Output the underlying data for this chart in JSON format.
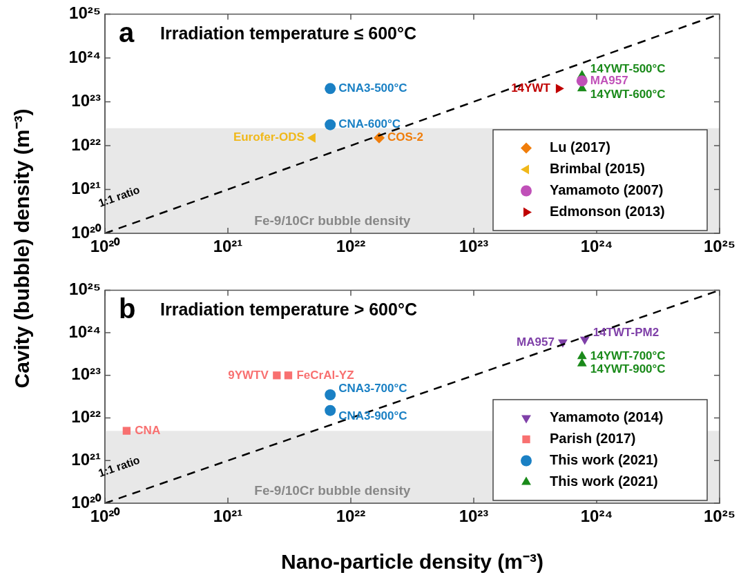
{
  "chart_data": [
    {
      "type": "scatter",
      "title": "Irradiation temperature ≤ 600°C",
      "ylabel": "Cavity (bubble) density (m⁻³)",
      "log": "xy",
      "legend": "bottom right",
      "xlim": [
        1e+20,
        1e+25
      ],
      "ylim": [
        1e+20,
        1e+25
      ],
      "xticks": [
        {
          "value": 1e+20,
          "label": "10²⁰"
        },
        {
          "value": 1e+21,
          "label": "10²¹"
        },
        {
          "value": 1e+22,
          "label": "10²²"
        },
        {
          "value": 1e+23,
          "label": "10²³"
        },
        {
          "value": 1e+24,
          "label": "10²⁴"
        },
        {
          "value": 1e+25,
          "label": "10²⁵"
        }
      ],
      "yticks": [
        {
          "value": 1e+20,
          "label": "10²⁰"
        },
        {
          "value": 1e+21,
          "label": "10²¹"
        },
        {
          "value": 1e+22,
          "label": "10²²"
        },
        {
          "value": 1e+23,
          "label": "10²³"
        },
        {
          "value": 1e+24,
          "label": "10²⁴"
        },
        {
          "value": 1e+25,
          "label": "10²⁵"
        }
      ],
      "bands": [
        {
          "axis": "y",
          "from": 1e+20,
          "to": 2.5e+22,
          "label": "Fe-9/10Cr bubble density",
          "color": "#e8e8e8"
        }
      ],
      "annotations": [
        "a",
        {
          "text": "CNA3-500°C",
          "x": 6.8e+21,
          "y": 2e+23
        },
        {
          "text": "CNA-600°C",
          "x": 6.8e+21,
          "y": 3e+22
        },
        {
          "text": "Eurofer-ODS",
          "x": 4.9e+21,
          "y": 1.5e+22
        },
        {
          "text": "COS-2",
          "x": 1.7e+22,
          "y": 1.5e+22
        },
        {
          "text": "14YWT",
          "x": 4.9e+23,
          "y": 2e+23
        },
        {
          "text": "14YWT-500°C",
          "x": 7.6e+23,
          "y": 4e+23
        },
        {
          "text": "MA957",
          "x": 7.6e+23,
          "y": 3e+23
        },
        {
          "text": "14YWT-600°C",
          "x": 7.6e+23,
          "y": 2e+23
        }
      ],
      "series": [
        {
          "type": "line",
          "name": "1:1 ratio",
          "color": "#000000",
          "line_style": "dashed",
          "marker": "none",
          "x": [
            1e+20,
            1e+25
          ],
          "values": [
            1e+20,
            1e+25
          ]
        },
        {
          "name": "Lu (2017)",
          "color": "#f07d0a",
          "marker": "diamond",
          "x": [
            1.7e+22
          ],
          "values": [
            1.5e+22
          ]
        },
        {
          "name": "Brimbal (2015)",
          "color": "#f0b81a",
          "marker": "triangle-left",
          "x": [
            4.9e+21
          ],
          "values": [
            1.5e+22
          ]
        },
        {
          "name": "Yamamoto (2007)",
          "color": "#c050b8",
          "marker": "circle",
          "x": [
            7.6e+23
          ],
          "values": [
            3e+23
          ]
        },
        {
          "name": "Edmonson (2013)",
          "color": "#c00000",
          "marker": "triangle-right",
          "x": [
            4.9e+23
          ],
          "values": [
            2e+23
          ]
        },
        {
          "color": "#1a80c4",
          "marker": "circle",
          "x": [
            6.8e+21,
            6.8e+21
          ],
          "values": [
            2e+23,
            3e+22
          ]
        },
        {
          "color": "#1a8a1a",
          "marker": "triangle",
          "x": [
            7.6e+23,
            7.6e+23
          ],
          "values": [
            4e+23,
            2e+23
          ]
        }
      ]
    },
    {
      "type": "scatter",
      "title": "Irradiation temperature > 600°C",
      "xlabel": "Nano-particle density (m⁻³)",
      "log": "xy",
      "legend": "bottom right",
      "xlim": [
        1e+20,
        1e+25
      ],
      "ylim": [
        1e+20,
        1e+25
      ],
      "xticks": [
        {
          "value": 1e+20,
          "label": "10²⁰"
        },
        {
          "value": 1e+21,
          "label": "10²¹"
        },
        {
          "value": 1e+22,
          "label": "10²²"
        },
        {
          "value": 1e+23,
          "label": "10²³"
        },
        {
          "value": 1e+24,
          "label": "10²⁴"
        },
        {
          "value": 1e+25,
          "label": "10²⁵"
        }
      ],
      "yticks": [
        {
          "value": 1e+20,
          "label": "10²⁰"
        },
        {
          "value": 1e+21,
          "label": "10²¹"
        },
        {
          "value": 1e+22,
          "label": "10²²"
        },
        {
          "value": 1e+23,
          "label": "10²³"
        },
        {
          "value": 1e+24,
          "label": "10²⁴"
        },
        {
          "value": 1e+25,
          "label": "10²⁵"
        }
      ],
      "bands": [
        {
          "axis": "y",
          "from": 1e+20,
          "to": 5e+21,
          "label": "Fe-9/10Cr bubble density",
          "color": "#e8e8e8"
        }
      ],
      "annotations": [
        "b",
        {
          "text": "CNA",
          "x": 1.5e+20,
          "y": 5e+21
        },
        {
          "text": "9YWTV",
          "x": 2.5e+21,
          "y": 1e+23
        },
        {
          "text": "FeCrAl-YZ",
          "x": 3.1e+21,
          "y": 1e+23
        },
        {
          "text": "CNA3-700°C",
          "x": 6.8e+21,
          "y": 3.5e+22
        },
        {
          "text": "CNA3-900°C",
          "x": 6.8e+21,
          "y": 1.5e+22
        },
        {
          "text": "MA957",
          "x": 5.3e+23,
          "y": 6e+23
        },
        {
          "text": "14TWT-PM2",
          "x": 8e+23,
          "y": 7e+23
        },
        {
          "text": "14YWT-700°C",
          "x": 7.6e+23,
          "y": 2.8e+23
        },
        {
          "text": "14YWT-900°C",
          "x": 7.6e+23,
          "y": 1.9e+23
        }
      ],
      "series": [
        {
          "type": "line",
          "name": "1:1 ratio",
          "color": "#000000",
          "line_style": "dashed",
          "marker": "none",
          "x": [
            1e+20,
            1e+25
          ],
          "values": [
            1e+20,
            1e+25
          ]
        },
        {
          "name": "Yamamoto (2014)",
          "color": "#7f40a8",
          "marker": "triangle-down",
          "x": [
            5.3e+23,
            8e+23
          ],
          "values": [
            6e+23,
            7e+23
          ]
        },
        {
          "name": "Parish (2017)",
          "color": "#f87070",
          "marker": "square",
          "x": [
            1.5e+20,
            2.5e+21,
            3.1e+21
          ],
          "values": [
            5e+21,
            1e+23,
            1e+23
          ]
        },
        {
          "name": "This work (2021)",
          "color": "#1a80c4",
          "marker": "circle",
          "x": [
            6.8e+21,
            6.8e+21
          ],
          "values": [
            3.5e+22,
            1.5e+22
          ]
        },
        {
          "name": "This work (2021)",
          "color": "#1a8a1a",
          "marker": "triangle",
          "x": [
            7.6e+23,
            7.6e+23
          ],
          "values": [
            2.8e+23,
            1.9e+23
          ]
        }
      ]
    }
  ]
}
